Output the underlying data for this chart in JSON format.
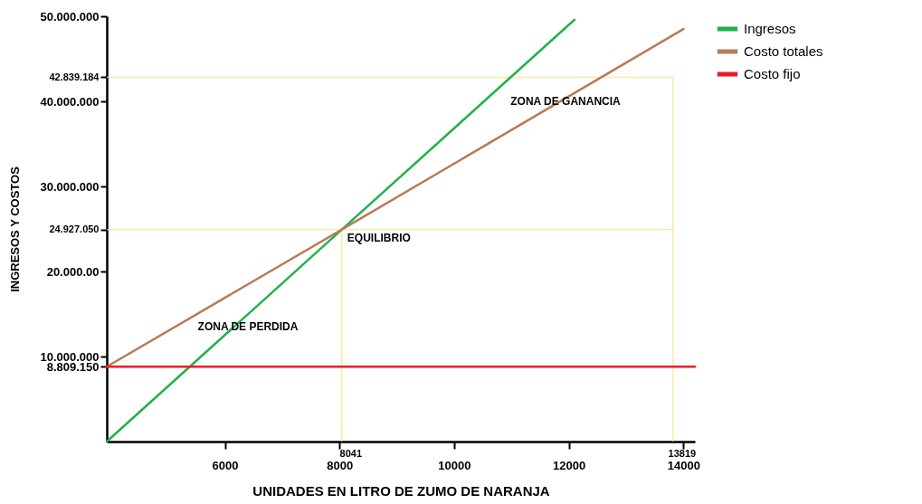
{
  "chart_data": {
    "type": "line",
    "xlabel": "UNIDADES EN LITRO DE ZUMO DE NARANJA",
    "ylabel": "INGRESOS Y COSTOS",
    "xlim": [
      3940,
      14200
    ],
    "ylim": [
      0,
      50000000
    ],
    "xticks": [
      6000,
      8000,
      10000,
      12000,
      14000
    ],
    "yticks": [
      {
        "value": 50000000,
        "label": "50.000.000"
      },
      {
        "value": 42839184,
        "label": "42.839.184"
      },
      {
        "value": 40000000,
        "label": "40.000.000"
      },
      {
        "value": 30000000,
        "label": "30.000.000"
      },
      {
        "value": 24927050,
        "label": "24.927.050"
      },
      {
        "value": 20000000,
        "label": "20.000.00"
      },
      {
        "value": 10000000,
        "label": "10.000.000"
      },
      {
        "value": 8809150,
        "label": "8.809.150"
      }
    ],
    "series": [
      {
        "name": "Ingresos",
        "color": "#22b14c",
        "x": [
          3940,
          8041,
          12100
        ],
        "values": [
          0,
          24927050,
          49600000
        ]
      },
      {
        "name": "Costo totales",
        "color": "#b97a57",
        "x": [
          3940,
          8041,
          14000
        ],
        "values": [
          8800000,
          24927050,
          48500000
        ]
      },
      {
        "name": "Costo fijo",
        "color": "#ed1c24",
        "x": [
          3940,
          14200
        ],
        "values": [
          8809150,
          8809150
        ]
      }
    ],
    "ref_lines": [
      {
        "axis": "x",
        "value": 8041,
        "label": "8041",
        "color": "#ffe07a"
      },
      {
        "axis": "y",
        "value": 24927050,
        "label": null,
        "color": "#ffe07a"
      },
      {
        "axis": "x",
        "value": 13819,
        "label": "13819",
        "color": "#ffe07a"
      },
      {
        "axis": "y",
        "value": 42839184,
        "label": null,
        "color": "#ffe07a"
      }
    ],
    "annotations": [
      "ZONA DE GANANCIA",
      "ZONA DE PERDIDA",
      {
        "text": "EQUILIBRIO",
        "x": 8041,
        "y": 24927050
      }
    ],
    "grid": false,
    "legend": "right",
    "line_style": "solid",
    "marker": "none"
  }
}
